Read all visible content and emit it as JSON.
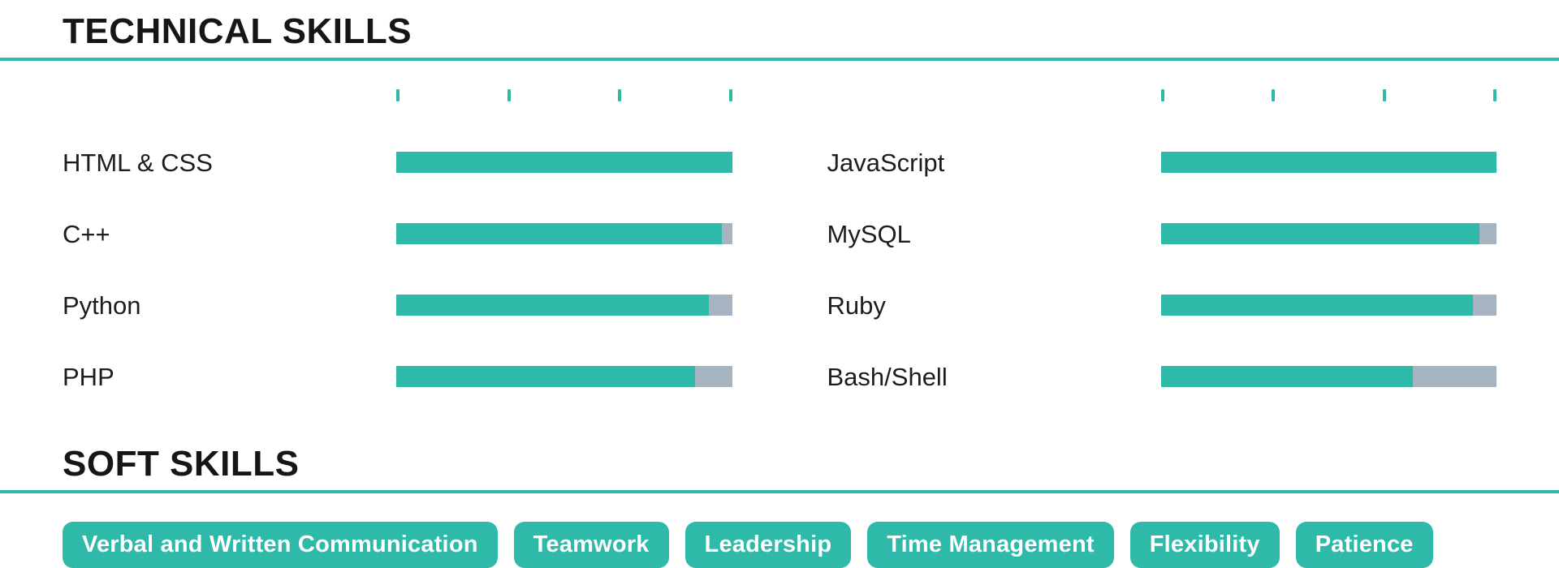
{
  "theme": {
    "accent_teal": "#2fb9a9",
    "bar_remainder_gray": "#a6b4c2",
    "heading_color": "#161616",
    "label_color": "#1d1d1d",
    "pill_text_color": "#ffffff"
  },
  "technical": {
    "heading": "TECHNICAL SKILLS",
    "columns": [
      {
        "skills": [
          {
            "name": "HTML & CSS",
            "percent": 100
          },
          {
            "name": "C++",
            "percent": 97
          },
          {
            "name": "Python",
            "percent": 93
          },
          {
            "name": "PHP",
            "percent": 89
          }
        ]
      },
      {
        "skills": [
          {
            "name": "JavaScript",
            "percent": 100
          },
          {
            "name": "MySQL",
            "percent": 95
          },
          {
            "name": "Ruby",
            "percent": 93
          },
          {
            "name": "Bash/Shell",
            "percent": 75
          }
        ]
      }
    ]
  },
  "soft": {
    "heading": "SOFT SKILLS",
    "skills": [
      {
        "label": "Verbal and Written Communication"
      },
      {
        "label": "Teamwork"
      },
      {
        "label": "Leadership"
      },
      {
        "label": "Time Management"
      },
      {
        "label": "Flexibility"
      },
      {
        "label": "Patience"
      }
    ]
  },
  "chart_data": {
    "type": "bar",
    "orientation": "horizontal",
    "title": "TECHNICAL SKILLS",
    "categories": [
      "HTML & CSS",
      "C++",
      "Python",
      "PHP",
      "JavaScript",
      "MySQL",
      "Ruby",
      "Bash/Shell"
    ],
    "values": [
      100,
      97,
      93,
      89,
      100,
      95,
      93,
      75
    ],
    "xlabel": "",
    "ylabel": "",
    "xlim": [
      0,
      100
    ],
    "grid": false,
    "legend": false,
    "tick_positions_percent": [
      0,
      33.3,
      66.7,
      100
    ],
    "bar_color": "#2fb9a9",
    "track_color": "#a6b4c2"
  }
}
